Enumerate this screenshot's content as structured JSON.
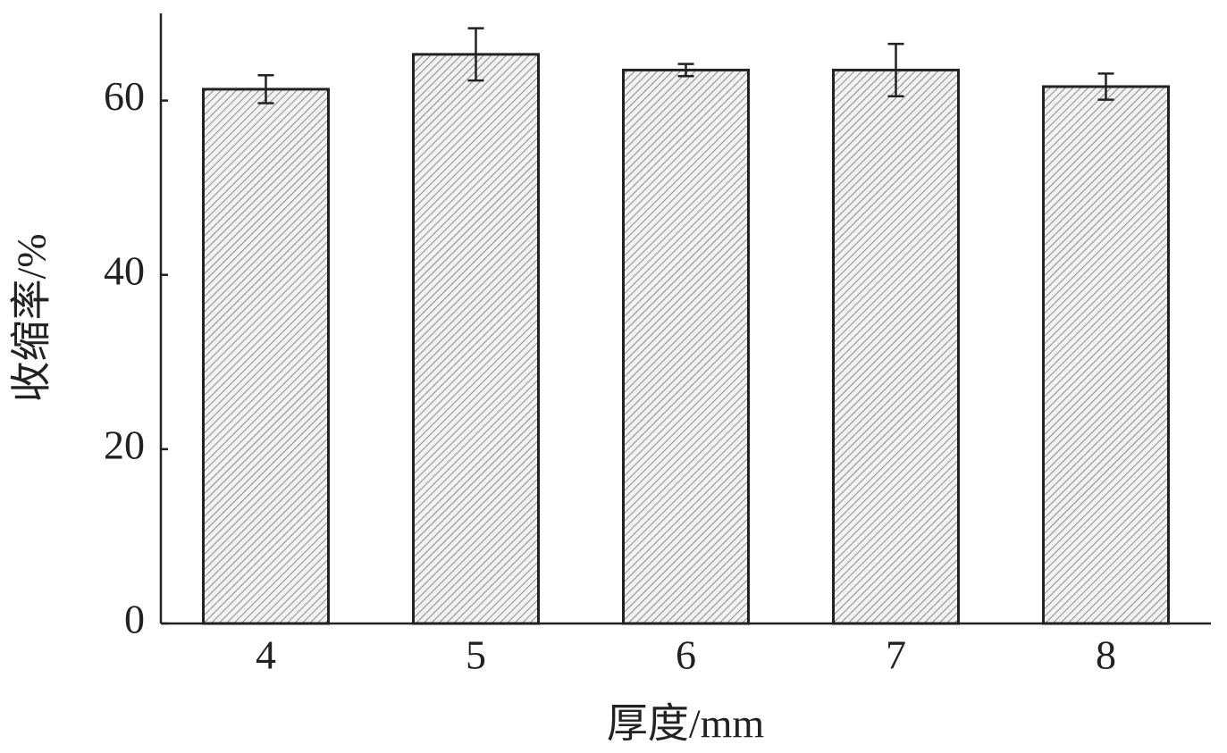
{
  "chart_data": {
    "type": "bar",
    "x_label": "厚度/mm",
    "y_label": "收缩率/%",
    "categories": [
      "4",
      "5",
      "6",
      "7",
      "8"
    ],
    "values": [
      61.3,
      65.3,
      63.5,
      63.5,
      61.6
    ],
    "errors": [
      1.6,
      3.0,
      0.7,
      3.0,
      1.5
    ],
    "color": "#d9d9d9",
    "ylim": [
      0,
      70
    ],
    "yticks": [
      0,
      20,
      40,
      60
    ],
    "grid": false
  }
}
